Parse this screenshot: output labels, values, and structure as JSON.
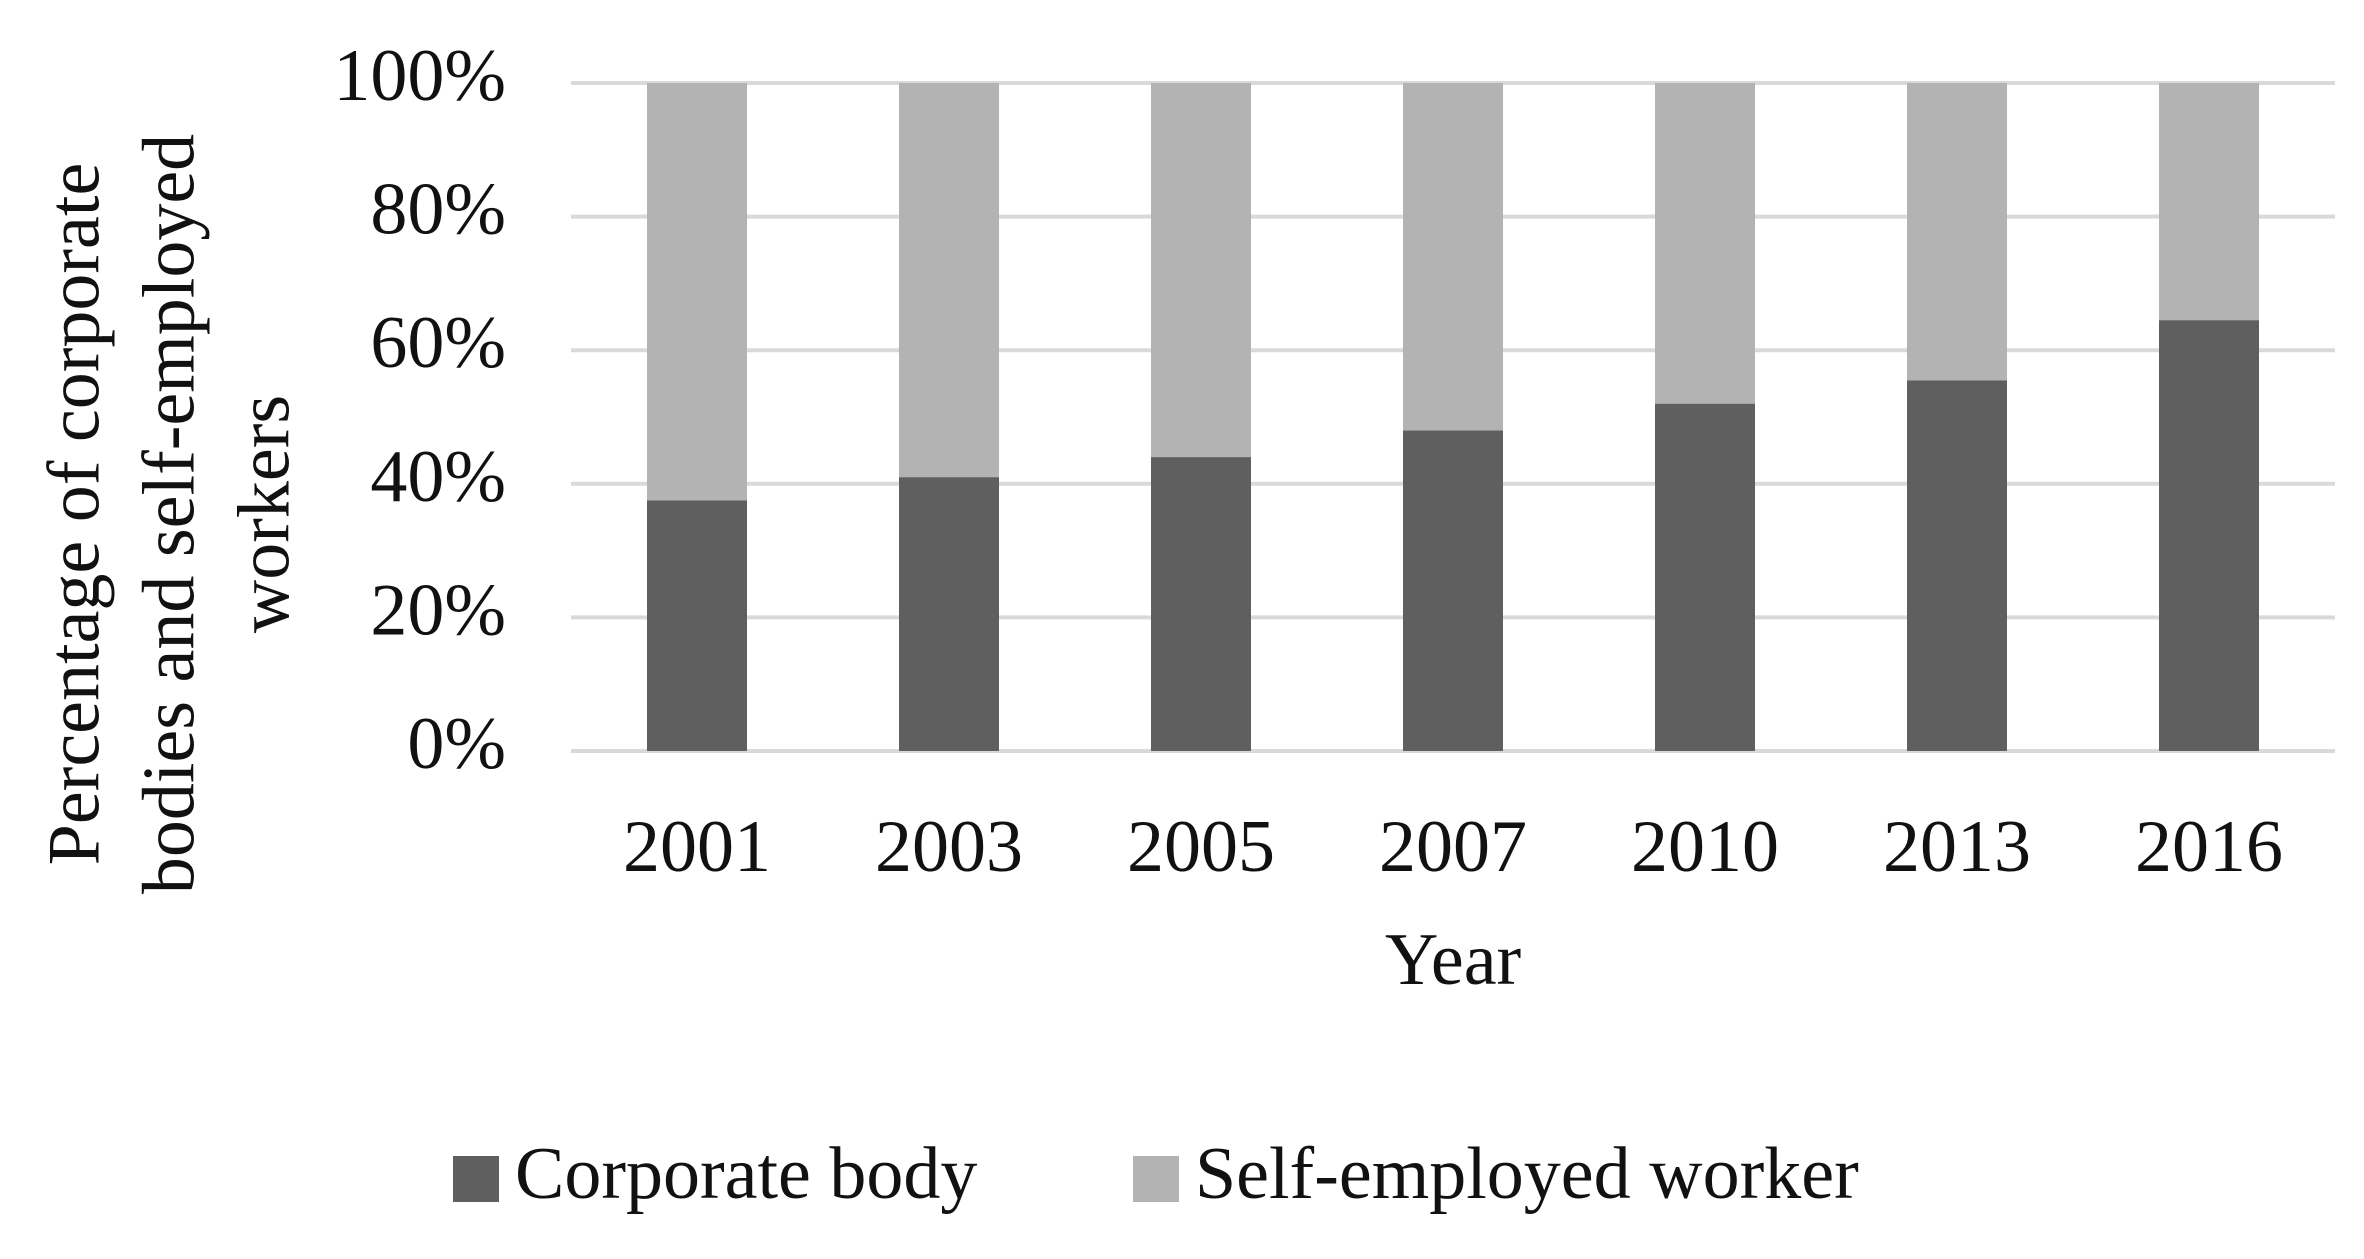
{
  "chart_data": {
    "type": "stacked_bar",
    "xlabel": "Year",
    "ylabel": "Percentage of corporate bodies and self-employed workers",
    "categories": [
      "2001",
      "2003",
      "2005",
      "2007",
      "2010",
      "2013",
      "2016"
    ],
    "series": [
      {
        "name": "Corporate body",
        "color": "#5f5f5f",
        "values": [
          37.5,
          41,
          44,
          48,
          52,
          55.5,
          64.5
        ]
      },
      {
        "name": "Self-employed worker",
        "color": "#b3b3b3",
        "values": [
          62.5,
          59,
          56,
          52,
          48,
          44.5,
          35.5
        ]
      }
    ],
    "ylim": [
      0,
      100
    ],
    "yticks": [
      {
        "value": 0,
        "label": "0%"
      },
      {
        "value": 20,
        "label": "20%"
      },
      {
        "value": 40,
        "label": "40%"
      },
      {
        "value": 60,
        "label": "60%"
      },
      {
        "value": 80,
        "label": "80%"
      },
      {
        "value": 100,
        "label": "100%"
      }
    ],
    "grid": true,
    "legend": "bottom"
  }
}
